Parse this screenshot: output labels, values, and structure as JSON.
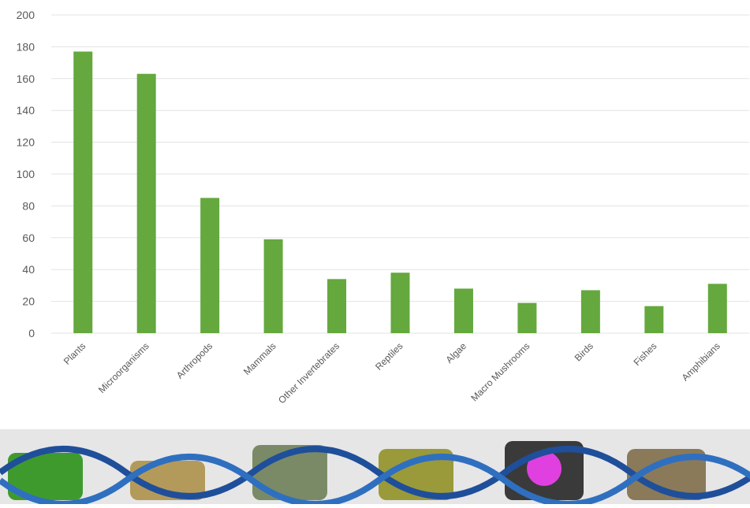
{
  "chart_data": {
    "type": "bar",
    "categories": [
      "Plants",
      "Microorganisms",
      "Arthropods",
      "Mammals",
      "Other Invertebrates",
      "Reptiles",
      "Algae",
      "Macro Mushrooms",
      "Birds",
      "Fishes",
      "Amphibians"
    ],
    "values": [
      177,
      163,
      85,
      59,
      34,
      38,
      28,
      19,
      27,
      17,
      31
    ],
    "color": "#64a83e",
    "ylim": [
      0,
      200
    ],
    "yticks": [
      0,
      20,
      40,
      60,
      80,
      100,
      120,
      140,
      160,
      180,
      200
    ],
    "grid": true
  }
}
